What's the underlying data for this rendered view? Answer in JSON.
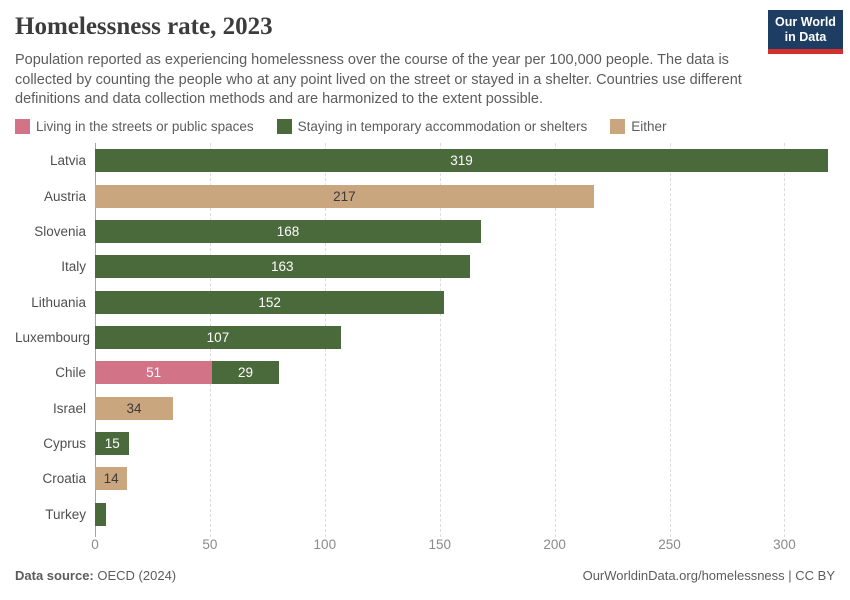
{
  "header": {
    "title": "Homelessness rate, 2023",
    "subtitle": "Population reported as experiencing homelessness over the course of the year per 100,000 people. The data is collected by counting the people who at any point lived on the street or stayed in a shelter. Countries use different definitions and data collection methods and are harmonized to the extent possible.",
    "logo_line1": "Our World",
    "logo_line2": "in Data"
  },
  "legend": {
    "items": [
      {
        "key": "streets",
        "label": "Living in the streets or public spaces"
      },
      {
        "key": "shelters",
        "label": "Staying in temporary accommodation or shelters"
      },
      {
        "key": "either",
        "label": "Either"
      }
    ]
  },
  "chart_data": {
    "type": "bar",
    "orientation": "horizontal",
    "stacked": true,
    "title": "Homelessness rate, 2023",
    "xlabel": "",
    "ylabel": "",
    "grid": "dashed-vertical",
    "legend_position": "top",
    "palette": {
      "streets": "#d27387",
      "shelters": "#4b6a3c",
      "either": "#caa67e"
    },
    "categories": [
      "Latvia",
      "Austria",
      "Slovenia",
      "Italy",
      "Lithuania",
      "Luxembourg",
      "Chile",
      "Israel",
      "Cyprus",
      "Croatia",
      "Turkey"
    ],
    "series": [
      {
        "name": "Living in the streets or public spaces",
        "key": "streets",
        "values": [
          null,
          null,
          null,
          null,
          null,
          null,
          51,
          null,
          null,
          null,
          null
        ]
      },
      {
        "name": "Staying in temporary accommodation or shelters",
        "key": "shelters",
        "values": [
          319,
          null,
          168,
          163,
          152,
          107,
          29,
          null,
          15,
          null,
          5
        ]
      },
      {
        "name": "Either",
        "key": "either",
        "values": [
          null,
          217,
          null,
          null,
          null,
          null,
          null,
          34,
          null,
          14,
          null
        ]
      }
    ],
    "rows": [
      {
        "country": "Latvia",
        "segments": [
          {
            "key": "shelters",
            "value": 319,
            "label": "319",
            "label_tone": "light"
          }
        ]
      },
      {
        "country": "Austria",
        "segments": [
          {
            "key": "either",
            "value": 217,
            "label": "217",
            "label_tone": "dark"
          }
        ]
      },
      {
        "country": "Slovenia",
        "segments": [
          {
            "key": "shelters",
            "value": 168,
            "label": "168",
            "label_tone": "light"
          }
        ]
      },
      {
        "country": "Italy",
        "segments": [
          {
            "key": "shelters",
            "value": 163,
            "label": "163",
            "label_tone": "light"
          }
        ]
      },
      {
        "country": "Lithuania",
        "segments": [
          {
            "key": "shelters",
            "value": 152,
            "label": "152",
            "label_tone": "light"
          }
        ]
      },
      {
        "country": "Luxembourg",
        "segments": [
          {
            "key": "shelters",
            "value": 107,
            "label": "107",
            "label_tone": "light"
          }
        ]
      },
      {
        "country": "Chile",
        "segments": [
          {
            "key": "streets",
            "value": 51,
            "label": "51",
            "label_tone": "light"
          },
          {
            "key": "shelters",
            "value": 29,
            "label": "29",
            "label_tone": "light"
          }
        ]
      },
      {
        "country": "Israel",
        "segments": [
          {
            "key": "either",
            "value": 34,
            "label": "34",
            "label_tone": "dark"
          }
        ]
      },
      {
        "country": "Cyprus",
        "segments": [
          {
            "key": "shelters",
            "value": 15,
            "label": "15",
            "label_tone": "light"
          }
        ]
      },
      {
        "country": "Croatia",
        "segments": [
          {
            "key": "either",
            "value": 14,
            "label": "14",
            "label_tone": "dark"
          }
        ]
      },
      {
        "country": "Turkey",
        "segments": [
          {
            "key": "shelters",
            "value": 5,
            "label": "",
            "label_tone": "light"
          }
        ]
      }
    ],
    "xticks": [
      0,
      50,
      100,
      150,
      200,
      250,
      300
    ],
    "xmax": 322
  },
  "footer": {
    "source_label": "Data source:",
    "source_value": "OECD (2024)",
    "credit": "OurWorldinData.org/homelessness | CC BY"
  }
}
